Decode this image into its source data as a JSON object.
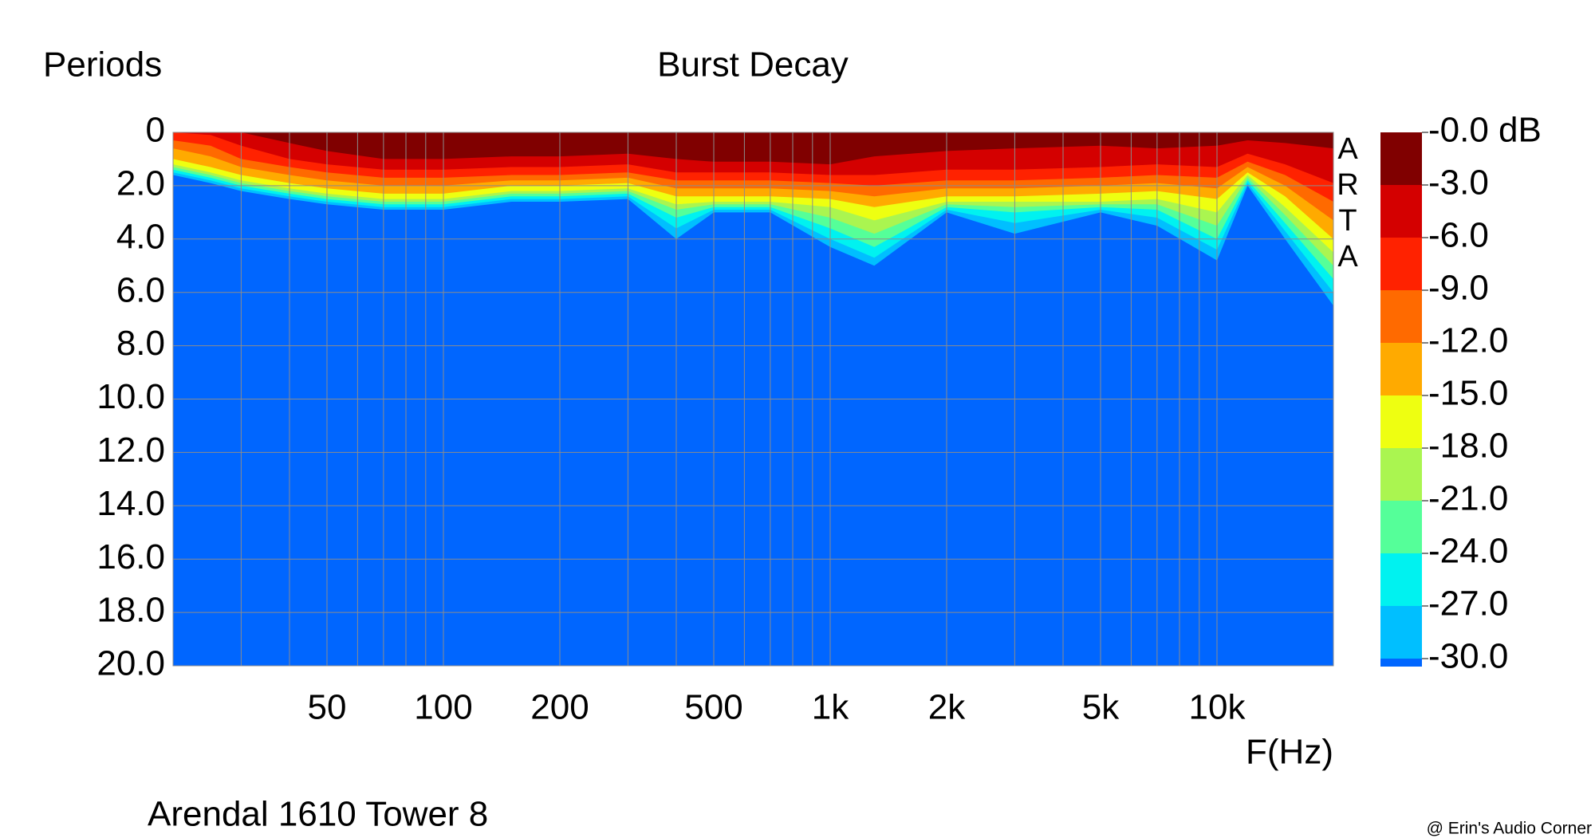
{
  "chart_data": {
    "type": "decay",
    "title": "Burst Decay",
    "ylabel": "Periods",
    "xlabel": "F(Hz)",
    "subtitle": "Arendal 1610 Tower 8",
    "credit": "@ Erin's Audio Corner",
    "watermark": [
      "A",
      "R",
      "T",
      "A"
    ],
    "xlog": true,
    "xlim": [
      20,
      20000
    ],
    "ylim": [
      0,
      20
    ],
    "grid": true,
    "grid_color": "#8c8c8c",
    "floor_color": "#0066ff",
    "xticks": [
      50,
      100,
      200,
      500,
      {
        "value": 1000,
        "label": "1k"
      },
      {
        "value": 2000,
        "label": "2k"
      },
      {
        "value": 5000,
        "label": "5k"
      },
      {
        "value": 10000,
        "label": "10k"
      }
    ],
    "xgrid": [
      30,
      40,
      50,
      60,
      70,
      80,
      90,
      100,
      200,
      300,
      400,
      500,
      600,
      700,
      800,
      900,
      1000,
      2000,
      3000,
      4000,
      5000,
      6000,
      7000,
      8000,
      9000,
      10000,
      20000
    ],
    "yticks": [
      0,
      {
        "value": 2,
        "label": "2.0"
      },
      {
        "value": 4,
        "label": "4.0"
      },
      {
        "value": 6,
        "label": "6.0"
      },
      {
        "value": 8,
        "label": "8.0"
      },
      {
        "value": 10,
        "label": "10.0"
      },
      {
        "value": 12,
        "label": "12.0"
      },
      {
        "value": 14,
        "label": "14.0"
      },
      {
        "value": 16,
        "label": "16.0"
      },
      {
        "value": 18,
        "label": "18.0"
      },
      {
        "value": 20,
        "label": "20.0"
      }
    ],
    "clim": [
      -30,
      0
    ],
    "cticks": [
      {
        "value": 0,
        "label": "-0.0 dB"
      },
      {
        "value": -3,
        "label": "-3.0"
      },
      {
        "value": -6,
        "label": "-6.0"
      },
      {
        "value": -9,
        "label": "-9.0"
      },
      {
        "value": -12,
        "label": "-12.0"
      },
      {
        "value": -15,
        "label": "-15.0"
      },
      {
        "value": -18,
        "label": "-18.0"
      },
      {
        "value": -21,
        "label": "-21.0"
      },
      {
        "value": -24,
        "label": "-24.0"
      },
      {
        "value": -27,
        "label": "-27.0"
      },
      {
        "value": -30,
        "label": "-30.0"
      }
    ],
    "x": [
      20,
      25,
      30,
      40,
      50,
      70,
      100,
      150,
      200,
      300,
      400,
      500,
      700,
      1000,
      1300,
      2000,
      3000,
      5000,
      7000,
      10000,
      12000,
      15000,
      20000
    ],
    "series": [
      {
        "level": -30,
        "color": "#00bfff",
        "values": [
          1.6,
          1.9,
          2.2,
          2.5,
          2.7,
          2.9,
          2.9,
          2.6,
          2.6,
          2.5,
          4.0,
          3.0,
          3.0,
          4.3,
          5.0,
          3.0,
          3.8,
          3.0,
          3.5,
          4.8,
          2.0,
          4.0,
          6.5
        ]
      },
      {
        "level": -27,
        "color": "#00f2f0",
        "values": [
          1.5,
          1.8,
          2.1,
          2.4,
          2.6,
          2.8,
          2.8,
          2.5,
          2.5,
          2.4,
          3.6,
          2.9,
          2.9,
          4.0,
          4.7,
          2.9,
          3.4,
          2.9,
          3.2,
          4.4,
          1.9,
          3.7,
          6.0
        ]
      },
      {
        "level": -24,
        "color": "#55ff99",
        "values": [
          1.4,
          1.7,
          2.0,
          2.3,
          2.5,
          2.7,
          2.7,
          2.4,
          2.4,
          2.3,
          3.2,
          2.8,
          2.8,
          3.6,
          4.3,
          2.8,
          3.0,
          2.8,
          2.9,
          4.0,
          1.8,
          3.4,
          5.5
        ]
      },
      {
        "level": -21,
        "color": "#aaf550",
        "values": [
          1.3,
          1.6,
          1.9,
          2.2,
          2.4,
          2.6,
          2.6,
          2.3,
          2.3,
          2.2,
          2.9,
          2.7,
          2.7,
          3.2,
          3.8,
          2.7,
          2.8,
          2.7,
          2.7,
          3.5,
          1.7,
          3.1,
          5.0
        ]
      },
      {
        "level": -18,
        "color": "#eeff11",
        "values": [
          1.2,
          1.5,
          1.8,
          2.1,
          2.3,
          2.5,
          2.5,
          2.2,
          2.2,
          2.1,
          2.7,
          2.6,
          2.6,
          2.8,
          3.3,
          2.6,
          2.6,
          2.6,
          2.5,
          3.0,
          1.6,
          2.8,
          4.5
        ]
      },
      {
        "level": -15,
        "color": "#ffaa00",
        "values": [
          1.0,
          1.3,
          1.6,
          1.9,
          2.1,
          2.3,
          2.3,
          2.0,
          2.0,
          1.9,
          2.4,
          2.4,
          2.4,
          2.5,
          2.8,
          2.4,
          2.4,
          2.3,
          2.2,
          2.5,
          1.5,
          2.4,
          4.0
        ]
      },
      {
        "level": -12,
        "color": "#ff6a00",
        "values": [
          0.6,
          0.9,
          1.3,
          1.6,
          1.8,
          2.0,
          2.0,
          1.8,
          1.8,
          1.7,
          2.1,
          2.1,
          2.1,
          2.2,
          2.4,
          2.1,
          2.1,
          2.0,
          1.9,
          2.1,
          1.3,
          2.0,
          3.3
        ]
      },
      {
        "level": -9,
        "color": "#ff2200",
        "values": [
          0.3,
          0.5,
          1.0,
          1.3,
          1.5,
          1.7,
          1.7,
          1.6,
          1.6,
          1.5,
          1.8,
          1.8,
          1.8,
          1.9,
          2.0,
          1.8,
          1.8,
          1.7,
          1.6,
          1.7,
          1.1,
          1.6,
          2.6
        ]
      },
      {
        "level": -6,
        "color": "#d40000",
        "values": [
          0,
          0.1,
          0.5,
          1.0,
          1.2,
          1.4,
          1.4,
          1.3,
          1.3,
          1.2,
          1.5,
          1.5,
          1.5,
          1.6,
          1.6,
          1.4,
          1.4,
          1.3,
          1.2,
          1.3,
          0.8,
          1.2,
          1.9
        ]
      },
      {
        "level": -3,
        "color": "#800000",
        "values": [
          0,
          0,
          0,
          0.4,
          0.7,
          1.0,
          1.0,
          0.9,
          0.9,
          0.8,
          1.0,
          1.1,
          1.1,
          1.2,
          0.9,
          0.7,
          0.6,
          0.5,
          0.6,
          0.5,
          0.3,
          0.4,
          0.6
        ]
      }
    ]
  }
}
